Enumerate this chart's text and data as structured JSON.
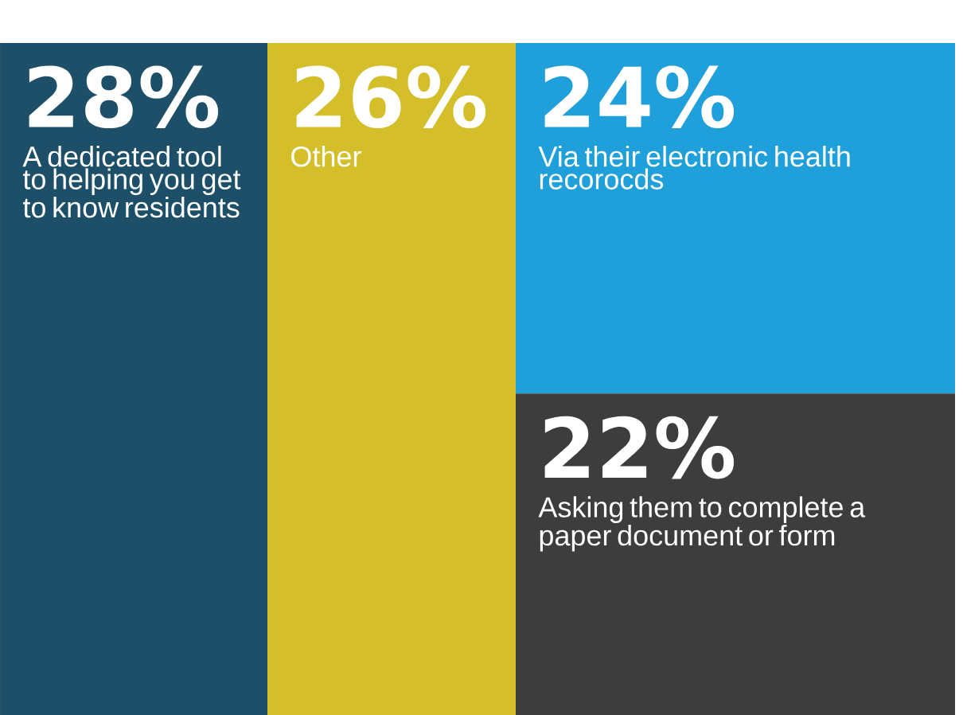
{
  "chart_data": {
    "type": "other",
    "categories": [
      "A dedicated tool to helping you get to know residents",
      "Other",
      "Via their electronic health recorocds",
      "Asking them to complete a paper document or form"
    ],
    "values": [
      28,
      26,
      24,
      22
    ],
    "value_labels": [
      "28%",
      "26%",
      "24%",
      "22%"
    ],
    "colors": [
      "#1d5068",
      "#d4bf2a",
      "#1fa0db",
      "#3d3d3d"
    ]
  }
}
